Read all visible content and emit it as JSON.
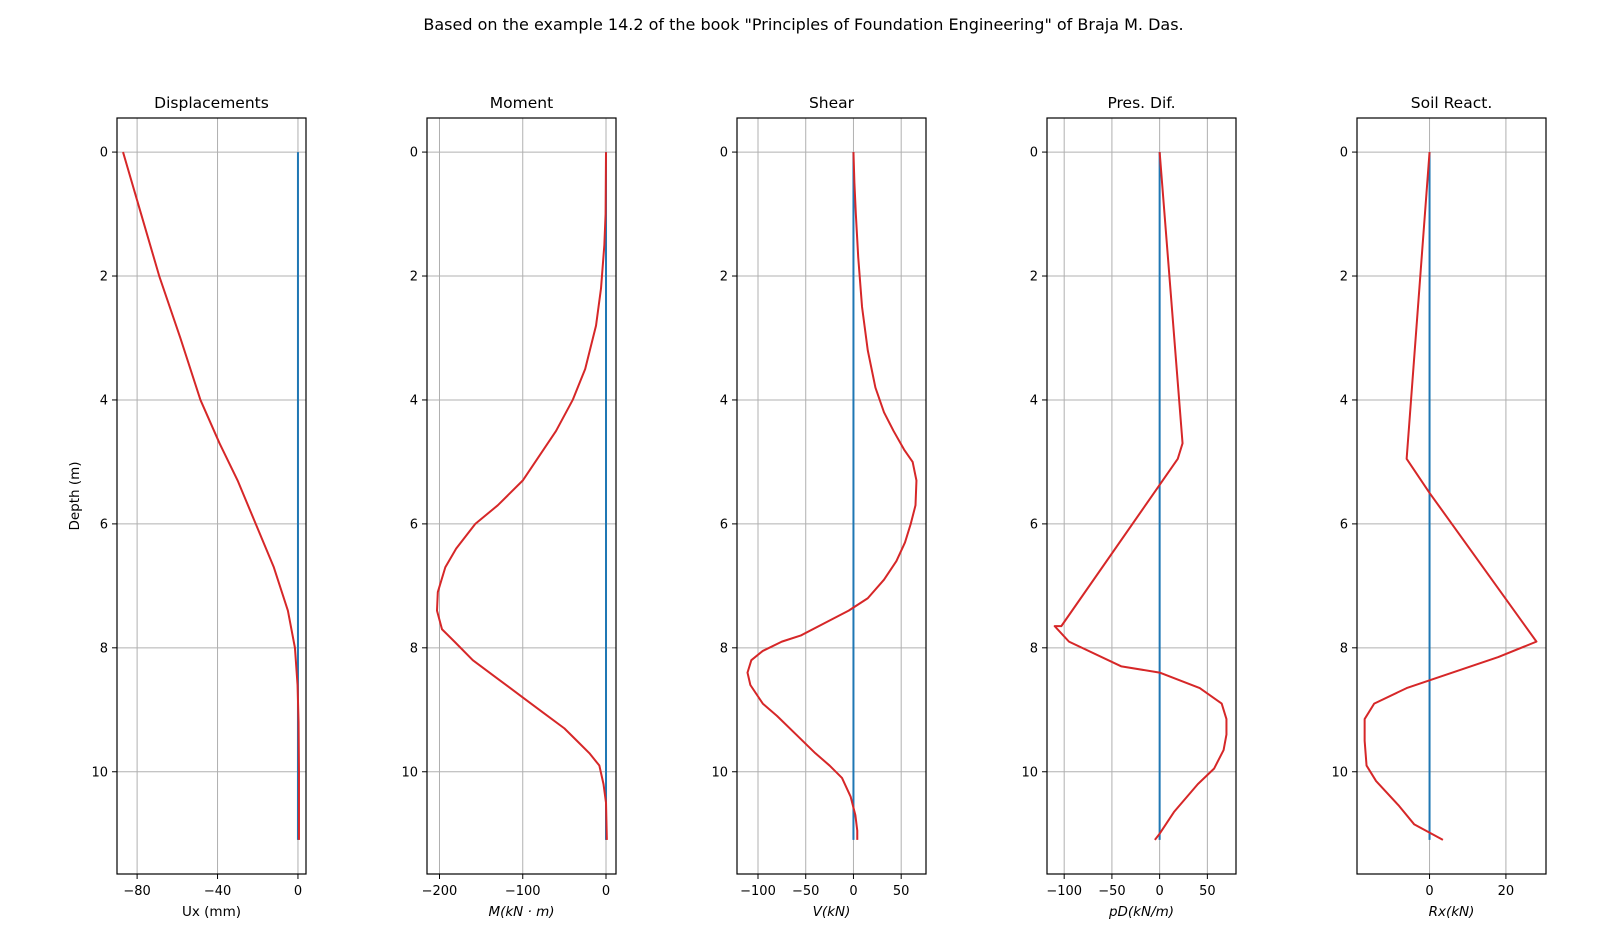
{
  "figure": {
    "title": "Based on the example 14.2 of the book \"Principles of Foundation Engineering\" of Braja M. Das.",
    "ylabel": "Depth (m)"
  },
  "colors": {
    "result": "#d62728",
    "reference": "#1f77b4",
    "grid": "#b0b0b0"
  },
  "chart_data": [
    {
      "type": "line",
      "title": "Displacements",
      "xlabel": "Ux (mm)",
      "xlabel_italic": false,
      "xlim": [
        -90,
        4
      ],
      "xticks": [
        -80,
        -40,
        0
      ],
      "xticklabels": [
        "−80",
        "−40",
        "0"
      ],
      "ylim": [
        11.65,
        -0.55
      ],
      "yticks": [
        0,
        2,
        4,
        6,
        8,
        10
      ],
      "grid": true,
      "reference": {
        "x": 0,
        "y": [
          0,
          11.1
        ]
      },
      "series": [
        {
          "points": [
            [
              -87,
              0
            ],
            [
              -78,
              1
            ],
            [
              -69,
              2
            ],
            [
              -58.5,
              3
            ],
            [
              -48.5,
              4
            ],
            [
              -39,
              4.7
            ],
            [
              -30,
              5.3
            ],
            [
              -21,
              6
            ],
            [
              -12,
              6.7
            ],
            [
              -5,
              7.4
            ],
            [
              -1.5,
              8
            ],
            [
              -0.2,
              8.6
            ],
            [
              0.3,
              9.2
            ],
            [
              0.5,
              10
            ],
            [
              0.5,
              11.1
            ]
          ]
        }
      ]
    },
    {
      "type": "line",
      "title": "Moment",
      "xlabel": "M(kN · m)",
      "xlabel_italic": true,
      "xlim": [
        -215,
        12
      ],
      "xticks": [
        -200,
        -100,
        0
      ],
      "xticklabels": [
        "−200",
        "−100",
        "0"
      ],
      "ylim": [
        11.65,
        -0.55
      ],
      "yticks": [
        0,
        2,
        4,
        6,
        8,
        10
      ],
      "grid": true,
      "reference": {
        "x": 0,
        "y": [
          0,
          11.1
        ]
      },
      "series": [
        {
          "points": [
            [
              0,
              0
            ],
            [
              -0.5,
              1
            ],
            [
              -2,
              1.5
            ],
            [
              -6,
              2.2
            ],
            [
              -12,
              2.8
            ],
            [
              -25,
              3.5
            ],
            [
              -40,
              4
            ],
            [
              -60,
              4.5
            ],
            [
              -100,
              5.3
            ],
            [
              -130,
              5.7
            ],
            [
              -157,
              6
            ],
            [
              -180,
              6.4
            ],
            [
              -193,
              6.7
            ],
            [
              -202,
              7.1
            ],
            [
              -203,
              7.4
            ],
            [
              -197,
              7.7
            ],
            [
              -182,
              7.9
            ],
            [
              -160,
              8.2
            ],
            [
              -130,
              8.5
            ],
            [
              -100,
              8.8
            ],
            [
              -75,
              9.05
            ],
            [
              -50,
              9.3
            ],
            [
              -35,
              9.5
            ],
            [
              -20,
              9.7
            ],
            [
              -8,
              9.9
            ],
            [
              -3,
              10.2
            ],
            [
              0,
              10.5
            ],
            [
              1,
              11.1
            ]
          ]
        }
      ]
    },
    {
      "type": "line",
      "title": "Shear",
      "xlabel": "V(kN)",
      "xlabel_italic": true,
      "xlim": [
        -122,
        76
      ],
      "xticks": [
        -100,
        -50,
        0,
        50
      ],
      "xticklabels": [
        "−100",
        "−50",
        "0",
        "50"
      ],
      "ylim": [
        11.65,
        -0.55
      ],
      "yticks": [
        0,
        2,
        4,
        6,
        8,
        10
      ],
      "grid": true,
      "reference": {
        "x": 0,
        "y": [
          0,
          11.1
        ]
      },
      "series": [
        {
          "points": [
            [
              0,
              0
            ],
            [
              1,
              0.5
            ],
            [
              2.5,
              1
            ],
            [
              5,
              1.7
            ],
            [
              9,
              2.5
            ],
            [
              15,
              3.2
            ],
            [
              23,
              3.8
            ],
            [
              32,
              4.2
            ],
            [
              42,
              4.5
            ],
            [
              53,
              4.8
            ],
            [
              62,
              5
            ],
            [
              66,
              5.3
            ],
            [
              65,
              5.7
            ],
            [
              60,
              6
            ],
            [
              54,
              6.3
            ],
            [
              45,
              6.6
            ],
            [
              32,
              6.9
            ],
            [
              15,
              7.2
            ],
            [
              -5,
              7.4
            ],
            [
              -30,
              7.6
            ],
            [
              -55,
              7.8
            ],
            [
              -75,
              7.9
            ],
            [
              -95,
              8.05
            ],
            [
              -107,
              8.2
            ],
            [
              -111,
              8.4
            ],
            [
              -108,
              8.6
            ],
            [
              -95,
              8.9
            ],
            [
              -80,
              9.1
            ],
            [
              -60,
              9.4
            ],
            [
              -40,
              9.7
            ],
            [
              -25,
              9.9
            ],
            [
              -12,
              10.1
            ],
            [
              -3,
              10.4
            ],
            [
              2,
              10.7
            ],
            [
              4,
              10.95
            ],
            [
              4,
              11.1
            ]
          ]
        }
      ]
    },
    {
      "type": "line",
      "title": "Pres. Dif.",
      "xlabel": "pD(kN/m)",
      "xlabel_italic": true,
      "xlim": [
        -118,
        80
      ],
      "xticks": [
        -100,
        -50,
        0,
        50
      ],
      "xticklabels": [
        "−100",
        "−50",
        "0",
        "50"
      ],
      "ylim": [
        11.65,
        -0.55
      ],
      "yticks": [
        0,
        2,
        4,
        6,
        8,
        10
      ],
      "grid": true,
      "reference": {
        "x": 0,
        "y": [
          0,
          11.1
        ]
      },
      "series": [
        {
          "points": [
            [
              0,
              0
            ],
            [
              24,
              4.7
            ],
            [
              19,
              4.95
            ],
            [
              -103,
              7.65
            ],
            [
              -110,
              7.65
            ],
            [
              -95,
              7.9
            ],
            [
              -40,
              8.3
            ],
            [
              0,
              8.4
            ],
            [
              42,
              8.65
            ],
            [
              65,
              8.9
            ],
            [
              70,
              9.15
            ],
            [
              70,
              9.4
            ],
            [
              67,
              9.65
            ],
            [
              57,
              9.95
            ],
            [
              40,
              10.2
            ],
            [
              15,
              10.65
            ],
            [
              0,
              11
            ],
            [
              -5,
              11.1
            ]
          ]
        }
      ]
    },
    {
      "type": "line",
      "title": "Soil React.",
      "xlabel": "Rx(kN)",
      "xlabel_italic": true,
      "xlim": [
        -19,
        30.5
      ],
      "xticks": [
        0,
        20
      ],
      "xticklabels": [
        "0",
        "20"
      ],
      "ylim": [
        11.65,
        -0.55
      ],
      "yticks": [
        0,
        2,
        4,
        6,
        8,
        10
      ],
      "grid": true,
      "reference": {
        "x": 0,
        "y": [
          0,
          11.1
        ]
      },
      "series": [
        {
          "points": [
            [
              0,
              0
            ],
            [
              -6,
              4.95
            ],
            [
              0,
              5.5
            ],
            [
              28,
              7.9
            ],
            [
              18,
              8.15
            ],
            [
              -6,
              8.65
            ],
            [
              -14.5,
              8.9
            ],
            [
              -17,
              9.15
            ],
            [
              -17,
              9.5
            ],
            [
              -16.5,
              9.9
            ],
            [
              -14,
              10.15
            ],
            [
              -8,
              10.55
            ],
            [
              -4,
              10.85
            ],
            [
              3.5,
              11.1
            ]
          ]
        }
      ]
    }
  ]
}
